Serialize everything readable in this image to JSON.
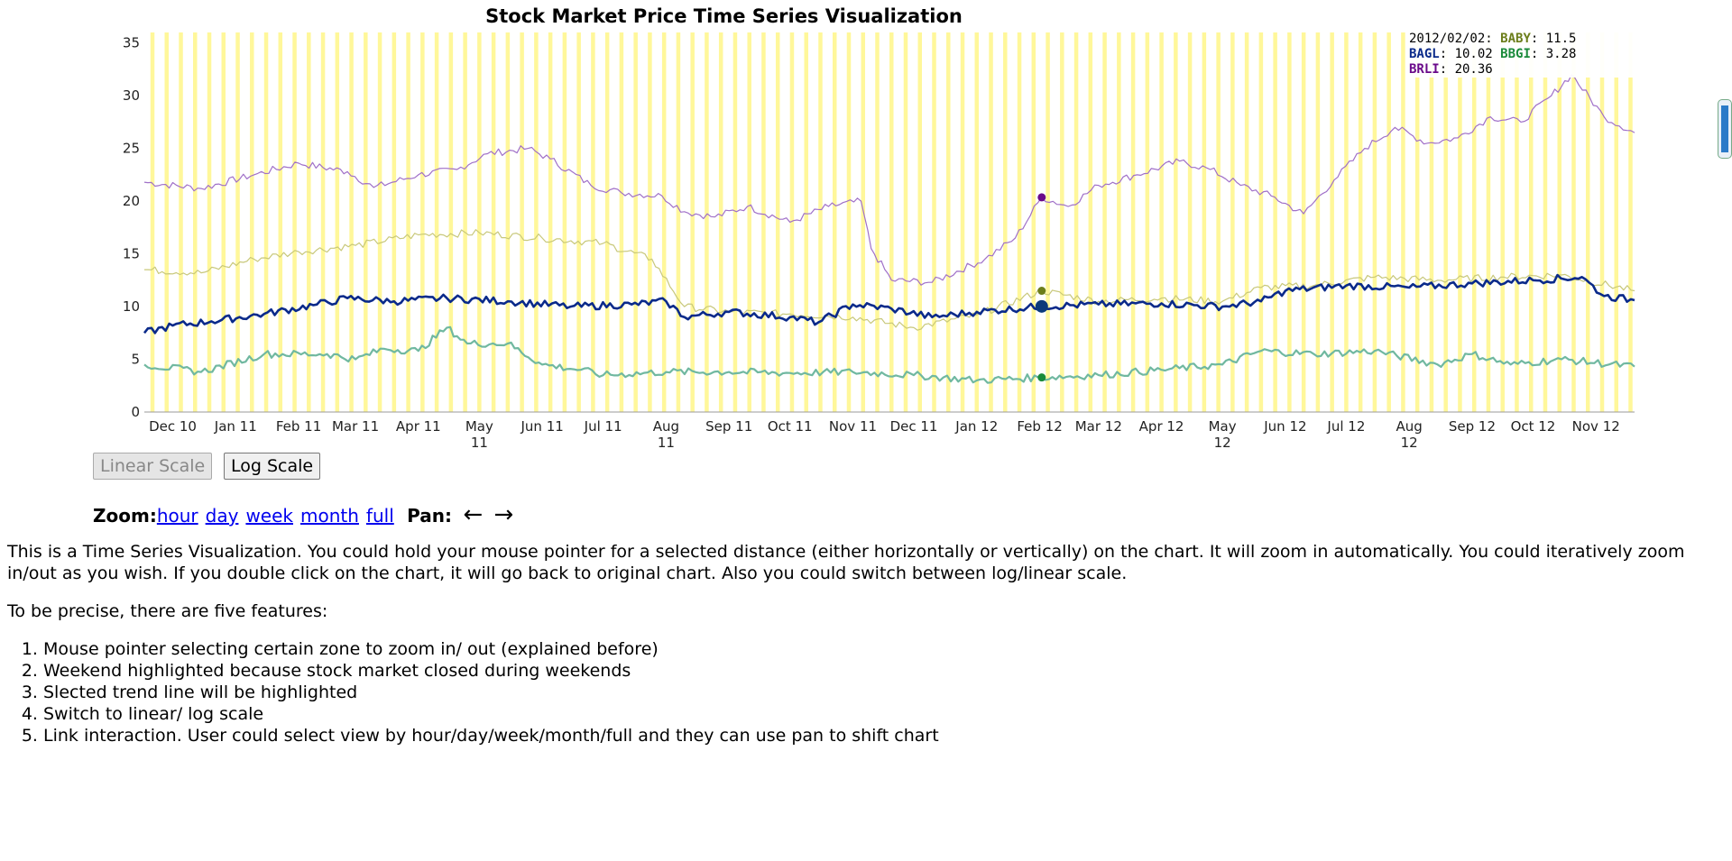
{
  "chart_data": {
    "type": "line",
    "title": "Stock Market Price Time Series Visualization",
    "x_ticks": [
      "Dec 10",
      "Jan 11",
      "Feb 11",
      "Mar 11",
      "Apr 11",
      "May 11",
      "Jun 11",
      "Jul 11",
      "Aug 11",
      "Sep 11",
      "Oct 11",
      "Nov 11",
      "Dec 11",
      "Jan 12",
      "Feb 12",
      "Mar 12",
      "Apr 12",
      "May 12",
      "Jun 12",
      "Jul 12",
      "Aug 12",
      "Sep 12",
      "Oct 12",
      "Nov 12"
    ],
    "y_ticks": [
      0,
      5,
      10,
      15,
      20,
      25,
      30,
      35
    ],
    "ylim": [
      0,
      36
    ],
    "x_range": [
      "2010-11-17",
      "2012-11-20"
    ],
    "weekend_highlight": true,
    "highlight_color": "#fff79a",
    "selected_date": "2012-02-02",
    "series": [
      {
        "name": "BRLI",
        "color": "#a070c8",
        "marker_color": "#6a0a8a",
        "selected_value": 20.36,
        "points": [
          [
            "2010-11-17",
            21.8
          ],
          [
            "2010-12-15",
            21.2
          ],
          [
            "2011-01-10",
            22.5
          ],
          [
            "2011-02-01",
            23.6
          ],
          [
            "2011-02-25",
            22.8
          ],
          [
            "2011-03-10",
            21.3
          ],
          [
            "2011-04-01",
            22.5
          ],
          [
            "2011-04-20",
            23.0
          ],
          [
            "2011-05-05",
            24.5
          ],
          [
            "2011-05-25",
            25.0
          ],
          [
            "2011-06-05",
            24.0
          ],
          [
            "2011-06-25",
            21.5
          ],
          [
            "2011-07-10",
            20.8
          ],
          [
            "2011-07-30",
            20.5
          ],
          [
            "2011-08-10",
            19.0
          ],
          [
            "2011-08-25",
            18.5
          ],
          [
            "2011-09-10",
            19.5
          ],
          [
            "2011-10-01",
            18.0
          ],
          [
            "2011-10-20",
            19.5
          ],
          [
            "2011-11-05",
            20.0
          ],
          [
            "2011-11-10",
            15.5
          ],
          [
            "2011-11-20",
            12.5
          ],
          [
            "2011-12-10",
            12.3
          ],
          [
            "2012-01-05",
            14.5
          ],
          [
            "2012-01-20",
            16.5
          ],
          [
            "2012-02-02",
            20.36
          ],
          [
            "2012-02-15",
            19.5
          ],
          [
            "2012-03-01",
            21.5
          ],
          [
            "2012-03-20",
            22.5
          ],
          [
            "2012-04-10",
            23.8
          ],
          [
            "2012-04-25",
            23.0
          ],
          [
            "2012-05-10",
            21.5
          ],
          [
            "2012-05-25",
            20.5
          ],
          [
            "2012-06-10",
            18.8
          ],
          [
            "2012-06-25",
            22.0
          ],
          [
            "2012-07-10",
            25.0
          ],
          [
            "2012-07-25",
            27.0
          ],
          [
            "2012-08-10",
            25.5
          ],
          [
            "2012-08-25",
            26.0
          ],
          [
            "2012-09-10",
            28.0
          ],
          [
            "2012-09-25",
            27.5
          ],
          [
            "2012-10-10",
            30.0
          ],
          [
            "2012-10-20",
            32.0
          ],
          [
            "2012-11-05",
            28.0
          ],
          [
            "2012-11-20",
            26.5
          ]
        ]
      },
      {
        "name": "BABY",
        "color": "#c8c87a",
        "marker_color": "#6b7d1a",
        "selected_value": 11.5,
        "points": [
          [
            "2010-11-17",
            13.5
          ],
          [
            "2010-12-15",
            13.2
          ],
          [
            "2011-01-10",
            14.5
          ],
          [
            "2011-02-01",
            15.2
          ],
          [
            "2011-03-01",
            15.8
          ],
          [
            "2011-04-01",
            16.8
          ],
          [
            "2011-05-01",
            17.0
          ],
          [
            "2011-06-01",
            16.5
          ],
          [
            "2011-07-01",
            16.0
          ],
          [
            "2011-07-25",
            14.5
          ],
          [
            "2011-08-10",
            10.0
          ],
          [
            "2011-09-01",
            9.5
          ],
          [
            "2011-10-01",
            9.3
          ],
          [
            "2011-11-01",
            9.0
          ],
          [
            "2011-12-01",
            8.0
          ],
          [
            "2012-01-01",
            9.2
          ],
          [
            "2012-02-02",
            11.5
          ],
          [
            "2012-03-01",
            10.5
          ],
          [
            "2012-04-01",
            10.8
          ],
          [
            "2012-05-01",
            10.5
          ],
          [
            "2012-05-20",
            11.8
          ],
          [
            "2012-06-15",
            12.0
          ],
          [
            "2012-07-15",
            12.8
          ],
          [
            "2012-08-15",
            12.5
          ],
          [
            "2012-09-15",
            12.8
          ],
          [
            "2012-10-15",
            13.0
          ],
          [
            "2012-11-20",
            11.5
          ]
        ]
      },
      {
        "name": "BAGL",
        "color": "#0a2a8a",
        "marker_color": "#0a3a7a",
        "selected_value": 10.02,
        "points": [
          [
            "2010-11-17",
            7.5
          ],
          [
            "2010-12-01",
            8.2
          ],
          [
            "2010-12-20",
            8.6
          ],
          [
            "2011-01-15",
            9.3
          ],
          [
            "2011-02-10",
            10.2
          ],
          [
            "2011-02-25",
            10.8
          ],
          [
            "2011-03-20",
            10.5
          ],
          [
            "2011-04-15",
            10.8
          ],
          [
            "2011-05-15",
            10.5
          ],
          [
            "2011-06-15",
            10.0
          ],
          [
            "2011-07-15",
            10.2
          ],
          [
            "2011-08-01",
            10.5
          ],
          [
            "2011-08-10",
            9.0
          ],
          [
            "2011-09-01",
            9.5
          ],
          [
            "2011-10-01",
            9.0
          ],
          [
            "2011-10-15",
            8.5
          ],
          [
            "2011-11-01",
            10.2
          ],
          [
            "2011-11-20",
            9.8
          ],
          [
            "2011-12-10",
            9.0
          ],
          [
            "2012-01-01",
            9.5
          ],
          [
            "2012-02-02",
            10.02
          ],
          [
            "2012-03-01",
            10.2
          ],
          [
            "2012-04-01",
            10.3
          ],
          [
            "2012-05-01",
            10.0
          ],
          [
            "2012-05-20",
            10.5
          ],
          [
            "2012-06-01",
            11.5
          ],
          [
            "2012-07-01",
            12.0
          ],
          [
            "2012-08-01",
            11.8
          ],
          [
            "2012-09-01",
            12.2
          ],
          [
            "2012-10-01",
            12.5
          ],
          [
            "2012-10-25",
            12.8
          ],
          [
            "2012-11-05",
            11.0
          ],
          [
            "2012-11-20",
            10.6
          ]
        ]
      },
      {
        "name": "BBGI",
        "color": "#70b8a0",
        "marker_color": "#1a8a3a",
        "selected_value": 3.28,
        "points": [
          [
            "2010-11-17",
            4.5
          ],
          [
            "2010-12-15",
            3.8
          ],
          [
            "2011-01-15",
            5.5
          ],
          [
            "2011-02-15",
            5.5
          ],
          [
            "2011-03-01",
            5.0
          ],
          [
            "2011-03-15",
            6.0
          ],
          [
            "2011-04-01",
            5.8
          ],
          [
            "2011-04-15",
            8.0
          ],
          [
            "2011-04-25",
            6.5
          ],
          [
            "2011-05-15",
            6.5
          ],
          [
            "2011-06-01",
            4.5
          ],
          [
            "2011-06-20",
            4.0
          ],
          [
            "2011-07-01",
            3.5
          ],
          [
            "2011-08-01",
            3.8
          ],
          [
            "2011-09-01",
            3.8
          ],
          [
            "2011-10-01",
            3.7
          ],
          [
            "2011-11-01",
            3.8
          ],
          [
            "2011-12-01",
            3.5
          ],
          [
            "2012-01-01",
            3.0
          ],
          [
            "2012-02-02",
            3.28
          ],
          [
            "2012-03-01",
            3.5
          ],
          [
            "2012-04-01",
            4.0
          ],
          [
            "2012-05-01",
            4.5
          ],
          [
            "2012-05-20",
            5.8
          ],
          [
            "2012-06-15",
            5.5
          ],
          [
            "2012-07-15",
            5.8
          ],
          [
            "2012-08-15",
            4.5
          ],
          [
            "2012-09-01",
            5.5
          ],
          [
            "2012-09-20",
            4.5
          ],
          [
            "2012-10-15",
            5.0
          ],
          [
            "2012-11-20",
            4.3
          ]
        ]
      }
    ]
  },
  "legend": {
    "date": "2012/02/02:",
    "entries": [
      {
        "name": "BABY",
        "value": ": 11.5",
        "color": "#6b7d1a"
      },
      {
        "name": "BAGL",
        "value": ": 10.02",
        "color": "#0a2a8a"
      },
      {
        "name": "BBGI",
        "value": ": 3.28",
        "color": "#1a8a3a"
      },
      {
        "name": "BRLI",
        "value": ": 20.36",
        "color": "#6a0a8a"
      }
    ]
  },
  "buttons": {
    "linear": "Linear Scale",
    "log": "Log Scale"
  },
  "controls": {
    "zoom_label": "Zoom:",
    "links": [
      "hour",
      "day",
      "week",
      "month",
      "full"
    ],
    "pan_label": "Pan:",
    "pan_left": "←",
    "pan_right": "→"
  },
  "description": {
    "para1": "This is a Time Series Visualization. You could hold your mouse pointer for a selected distance (either horizontally or vertically) on the chart. It will zoom in automatically. You could iteratively zoom in/out as you wish. If you double click on the chart, it will go back to original chart. Also you could switch between log/linear scale.",
    "para2": "To be precise, there are five features:",
    "features": [
      "Mouse pointer selecting certain zone to zoom in/ out (explained before)",
      "Weekend highlighted because stock market closed during weekends",
      "Slected trend line will be highlighted",
      "Switch to linear/ log scale",
      "Link interaction. User could select view by hour/day/week/month/full and they can use pan to shift chart"
    ]
  }
}
